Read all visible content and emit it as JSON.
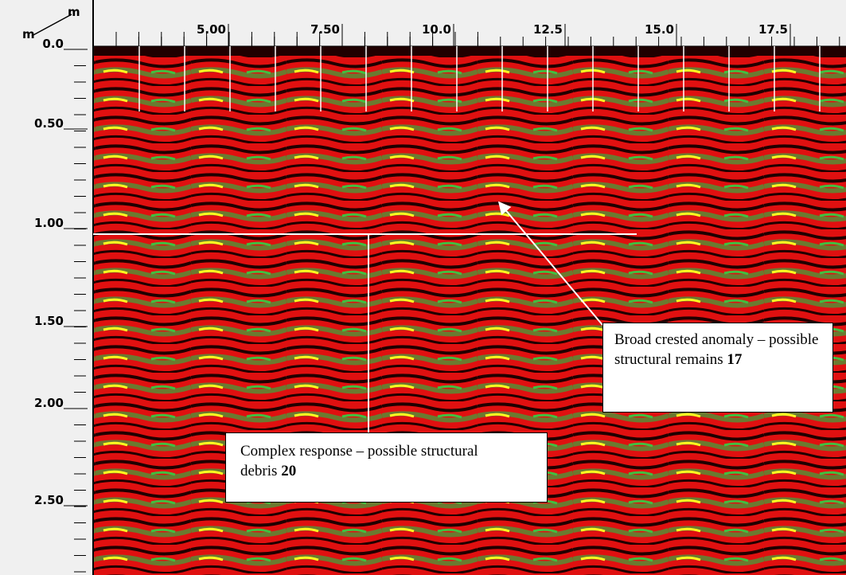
{
  "x_axis": {
    "unit": "m",
    "ticks": [
      "5.00",
      "7.50",
      "10.0",
      "12.5",
      "15.0",
      "17.5"
    ]
  },
  "y_axis": {
    "unit": "m",
    "ticks": [
      "0.0",
      "0.50",
      "1.00",
      "1.50",
      "2.00",
      "2.50"
    ]
  },
  "annotations": [
    {
      "text": "Broad crested anomaly – possible structural remains",
      "number": "17"
    },
    {
      "text": "Complex response – possible structural debris",
      "number": "20"
    }
  ]
}
